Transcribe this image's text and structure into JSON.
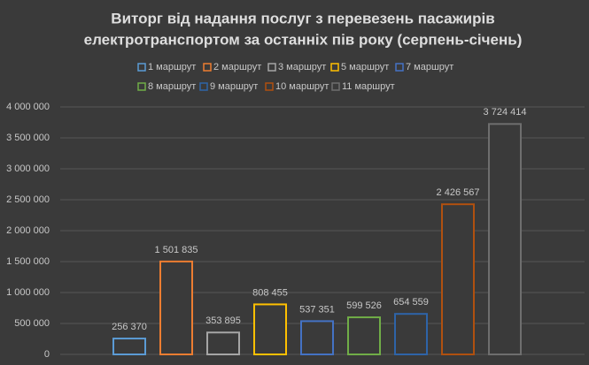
{
  "chart_data": {
    "type": "bar",
    "title": [
      "Виторг від надання послуг з перевезень пасажирів",
      "електротранспортом за останніх пів року (серпень-січень)"
    ],
    "series": [
      {
        "name": "1 маршрут",
        "color": "#5b9bd5",
        "values": [
          256370
        ],
        "value_labels": [
          "256 370"
        ]
      },
      {
        "name": "2 маршрут",
        "color": "#ed7d31",
        "values": [
          1501835
        ],
        "value_labels": [
          "1 501 835"
        ]
      },
      {
        "name": "3 маршрут",
        "color": "#a5a5a5",
        "values": [
          353895
        ],
        "value_labels": [
          "353 895"
        ]
      },
      {
        "name": "5 маршрут",
        "color": "#ffc000",
        "values": [
          808455
        ],
        "value_labels": [
          "808 455"
        ]
      },
      {
        "name": "7 маршрут",
        "color": "#4472c4",
        "values": [
          537351
        ],
        "value_labels": [
          "537 351"
        ]
      },
      {
        "name": "8 маршрут",
        "color": "#70ad47",
        "values": [
          599526
        ],
        "value_labels": [
          "599 526"
        ]
      },
      {
        "name": "9 маршрут",
        "color": "#2e64a8",
        "values": [
          654559
        ],
        "value_labels": [
          "654 559"
        ]
      },
      {
        "name": "10 маршрут",
        "color": "#b0500f",
        "values": [
          2426567
        ],
        "value_labels": [
          "2 426 567"
        ]
      },
      {
        "name": "11 маршрут",
        "color": "#6e6e6e",
        "values": [
          3724414
        ],
        "value_labels": [
          "3 724 414"
        ]
      }
    ],
    "ylim": [
      0,
      4000000
    ],
    "yticks": [
      {
        "value": 0,
        "label": "0"
      },
      {
        "value": 500000,
        "label": "500 000"
      },
      {
        "value": 1000000,
        "label": "1 000 000"
      },
      {
        "value": 1500000,
        "label": "1 500 000"
      },
      {
        "value": 2000000,
        "label": "2 000 000"
      },
      {
        "value": 2500000,
        "label": "2 500 000"
      },
      {
        "value": 3000000,
        "label": "3 000 000"
      },
      {
        "value": 3500000,
        "label": "3 500 000"
      },
      {
        "value": 4000000,
        "label": "4 000 000"
      }
    ],
    "grid": true
  }
}
